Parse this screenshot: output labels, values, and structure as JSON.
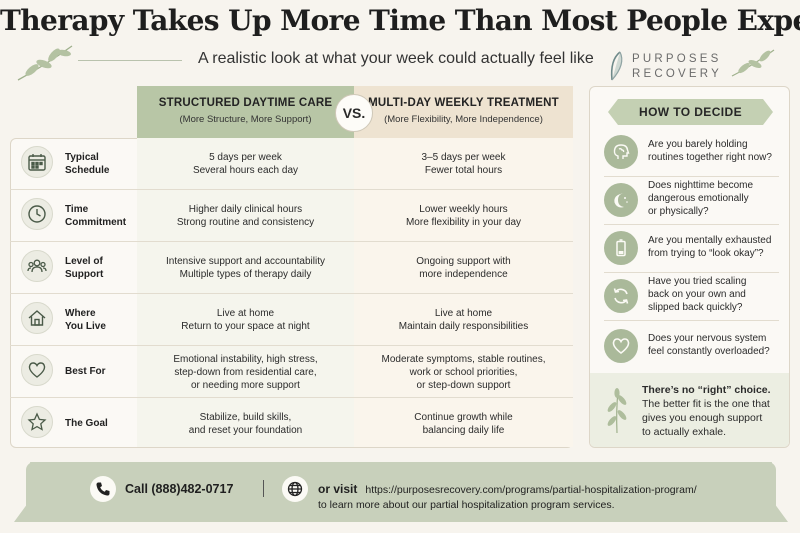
{
  "header": {
    "title": "Therapy Takes Up More Time Than Most People Expect",
    "subtitle": "A realistic look at what your week could actually feel like",
    "logo_line1": "PURPOSES",
    "logo_line2": "RECOVERY"
  },
  "columns": {
    "a_title": "STRUCTURED DAYTIME CARE",
    "a_subtitle": "(More Structure, More Support)",
    "vs": "VS.",
    "b_title": "MULTI-DAY WEEKLY TREATMENT",
    "b_subtitle": "(More Flexibility, More Independence)"
  },
  "rows": [
    {
      "icon": "calendar-icon",
      "label": [
        "Typical",
        "Schedule"
      ],
      "a": [
        "5 days per week",
        "Several hours each day"
      ],
      "b": [
        "3–5 days per week",
        "Fewer total hours"
      ]
    },
    {
      "icon": "clock-icon",
      "label": [
        "Time",
        "Commitment"
      ],
      "a": [
        "Higher daily clinical hours",
        "Strong routine and consistency"
      ],
      "b": [
        "Lower weekly hours",
        "More flexibility in your day"
      ]
    },
    {
      "icon": "people-icon",
      "label": [
        "Level of",
        "Support"
      ],
      "a": [
        "Intensive support and accountability",
        "Multiple types of therapy daily"
      ],
      "b": [
        "Ongoing support with",
        "more independence"
      ]
    },
    {
      "icon": "house-icon",
      "label": [
        "Where",
        "You Live"
      ],
      "a": [
        "Live at home",
        "Return to your space at night"
      ],
      "b": [
        "Live at home",
        "Maintain daily responsibilities"
      ]
    },
    {
      "icon": "heart-icon",
      "label": [
        "Best For"
      ],
      "a": [
        "Emotional instability, high stress,",
        "step-down from residential care,",
        "or needing more support"
      ],
      "b": [
        "Moderate symptoms, stable routines,",
        "work or school priorities,",
        "or step-down support"
      ]
    },
    {
      "icon": "star-icon",
      "label": [
        "The Goal"
      ],
      "a": [
        "Stabilize, build skills,",
        "and reset your foundation"
      ],
      "b": [
        "Continue growth while",
        "balancing daily life"
      ]
    }
  ],
  "side": {
    "heading": "HOW TO DECIDE",
    "questions": [
      {
        "icon": "brain-icon",
        "lines": [
          "Are you barely holding",
          "routines together right now?"
        ]
      },
      {
        "icon": "moon-icon",
        "lines": [
          "Does nighttime become",
          "dangerous emotionally",
          "or physically?"
        ]
      },
      {
        "icon": "battery-low-icon",
        "lines": [
          "Are you mentally exhausted",
          "from trying to “look okay”?"
        ]
      },
      {
        "icon": "refresh-icon",
        "lines": [
          "Have you tried scaling",
          "back on your own and",
          "slipped back quickly?"
        ]
      },
      {
        "icon": "heart-icon",
        "lines": [
          "Does your nervous system",
          "feel constantly overloaded?"
        ]
      }
    ],
    "footer_bold": "There’s no “right” choice.",
    "footer_lines": [
      "The better fit is the one that",
      "gives you enough support",
      "to actually exhale."
    ]
  },
  "banner": {
    "call": "Call (888)482-0717",
    "visit_label": "or visit",
    "url": "https://purposesrecovery.com/programs/partial-hospitalization-program/",
    "learn": "to learn more about our partial hospitalization program services."
  },
  "colors": {
    "sage": "#b8c6a6",
    "cream": "#eee3d1",
    "background": "#f7f4ee",
    "icon_green": "#aab99a"
  }
}
